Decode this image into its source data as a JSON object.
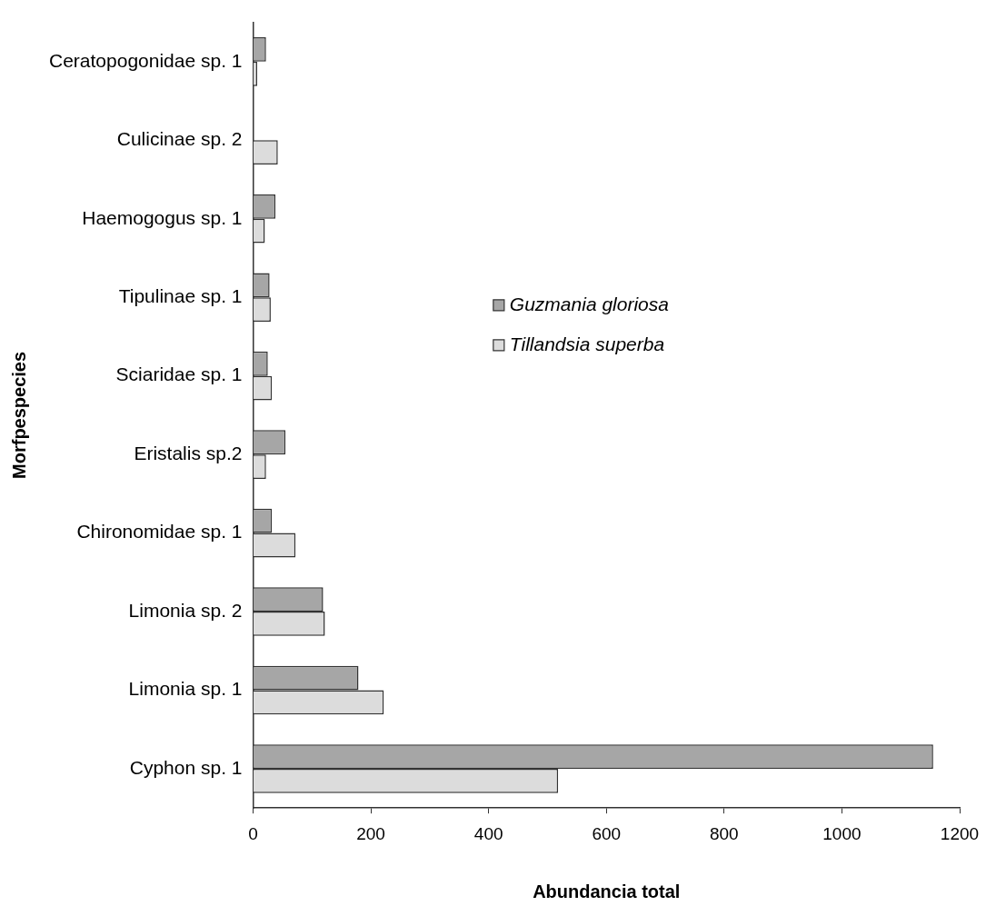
{
  "chart_data": {
    "type": "bar",
    "orientation": "horizontal",
    "xlabel": "Abundancia total",
    "ylabel": "Morfpespecies",
    "categories": [
      "Ceratopogonidae sp. 1",
      "Culicinae sp. 2",
      "Haemogogus sp. 1",
      "Tipulinae sp. 1",
      "Sciaridae sp. 1",
      "Eristalis sp.2",
      "Chironomidae sp. 1",
      "Limonia sp. 2",
      "Limonia sp. 1",
      "Cyphon sp. 1"
    ],
    "series": [
      {
        "name": "Guzmania gloriosa",
        "color": "#a6a6a6",
        "values": [
          22,
          0,
          38,
          28,
          25,
          55,
          32,
          119,
          179,
          1155
        ]
      },
      {
        "name": "Tillandsia superba",
        "color": "#dcdcdc",
        "values": [
          7,
          42,
          20,
          30,
          32,
          22,
          72,
          122,
          222,
          518
        ]
      }
    ],
    "xlim": [
      0,
      1200
    ],
    "xticks": [
      0,
      200,
      400,
      600,
      800,
      1000,
      1200
    ],
    "grid": false,
    "legend": "right"
  }
}
